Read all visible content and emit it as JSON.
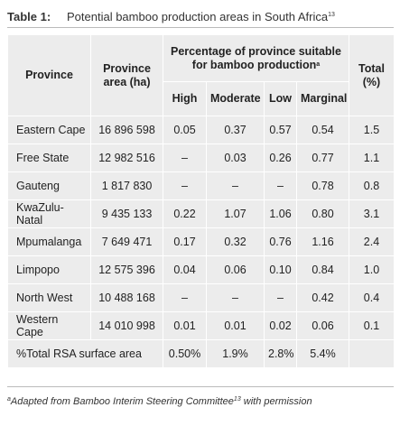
{
  "caption": {
    "label": "Table 1:",
    "title": "Potential bamboo production areas in South Africa",
    "ref": "13"
  },
  "headers": {
    "province": "Province",
    "area": "Province area (ha)",
    "pct": "Percentage of province suitable for bamboo production",
    "pct_mark": "a",
    "total": "Total (%)",
    "high": "High",
    "moderate": "Moderate",
    "low": "Low",
    "marginal": "Marginal"
  },
  "rows": [
    {
      "province": "Eastern Cape",
      "area": "16 896 598",
      "high": "0.05",
      "moderate": "0.37",
      "low": "0.57",
      "marginal": "0.54",
      "total": "1.5"
    },
    {
      "province": "Free State",
      "area": "12 982 516",
      "high": "–",
      "moderate": "0.03",
      "low": "0.26",
      "marginal": "0.77",
      "total": "1.1"
    },
    {
      "province": "Gauteng",
      "area": "1 817 830",
      "high": "–",
      "moderate": "–",
      "low": "–",
      "marginal": "0.78",
      "total": "0.8"
    },
    {
      "province": "KwaZulu-Natal",
      "area": "9 435 133",
      "high": "0.22",
      "moderate": "1.07",
      "low": "1.06",
      "marginal": "0.80",
      "total": "3.1"
    },
    {
      "province": "Mpumalanga",
      "area": "7 649 471",
      "high": "0.17",
      "moderate": "0.32",
      "low": "0.76",
      "marginal": "1.16",
      "total": "2.4"
    },
    {
      "province": "Limpopo",
      "area": "12 575 396",
      "high": "0.04",
      "moderate": "0.06",
      "low": "0.10",
      "marginal": "0.84",
      "total": "1.0"
    },
    {
      "province": "North West",
      "area": "10 488 168",
      "high": "–",
      "moderate": "–",
      "low": "–",
      "marginal": "0.42",
      "total": "0.4"
    },
    {
      "province": "Western Cape",
      "area": "14 010 998",
      "high": "0.01",
      "moderate": "0.01",
      "low": "0.02",
      "marginal": "0.06",
      "total": "0.1"
    }
  ],
  "total_row": {
    "label": "%Total RSA surface area",
    "high": "0.50%",
    "moderate": "1.9%",
    "low": "2.8%",
    "marginal": "5.4%",
    "total": ""
  },
  "footnote": {
    "mark": "a",
    "text_before": "Adapted from Bamboo Interim Steering Committee",
    "ref": "13",
    "text_after": " with permission"
  }
}
